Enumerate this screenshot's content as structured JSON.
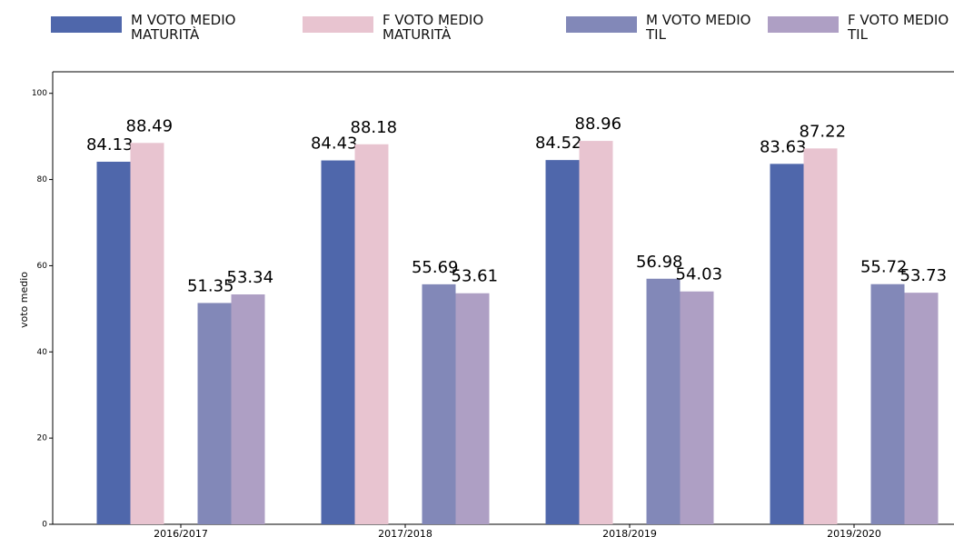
{
  "chart_data": {
    "type": "bar",
    "ylabel": "voto medio",
    "categories": [
      "2016/2017",
      "2017/2018",
      "2018/2019",
      "2019/2020"
    ],
    "series": [
      {
        "name": "M VOTO MEDIO MATURITÀ",
        "color": "#4f67ab",
        "values": [
          84.13,
          84.43,
          84.52,
          83.63
        ]
      },
      {
        "name": "F VOTO MEDIO MATURITÀ",
        "color": "#e8c4d0",
        "values": [
          88.49,
          88.18,
          88.96,
          87.22
        ]
      },
      {
        "name": "M VOTO MEDIO TIL",
        "color": "#8288b8",
        "values": [
          51.35,
          55.69,
          56.98,
          55.72
        ]
      },
      {
        "name": "F VOTO MEDIO TIL",
        "color": "#ae9fc4",
        "values": [
          53.34,
          53.61,
          54.03,
          53.73
        ]
      }
    ],
    "ylim": [
      0,
      105
    ],
    "yticks": [
      0,
      20,
      40,
      60,
      80,
      100
    ]
  }
}
